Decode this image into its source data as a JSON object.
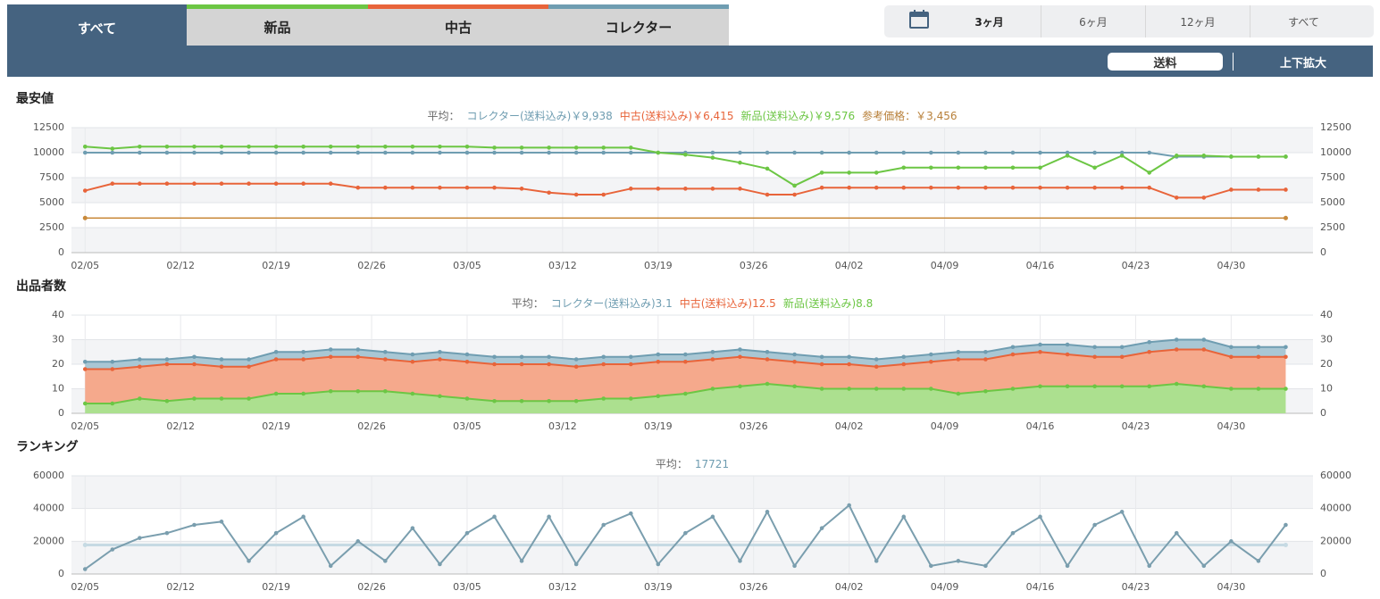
{
  "tabs": [
    "すべて",
    "新品",
    "中古",
    "コレクター"
  ],
  "range_options": [
    "3ヶ月",
    "6ヶ月",
    "12ヶ月",
    "すべて"
  ],
  "toolbar": [
    "送料",
    "上下拡大"
  ],
  "chart_data": [
    {
      "type": "line",
      "title": "最安値",
      "summary": [
        {
          "text": "平均：",
          "color": "#666666"
        },
        {
          "text": "コレクター(送料込み)￥9,938",
          "color": "#6f9db1"
        },
        {
          "text": "中古(送料込み)￥6,415",
          "color": "#e8643a"
        },
        {
          "text": "新品(送料込み)￥9,576",
          "color": "#6cc644"
        },
        {
          "text": "参考価格：￥3,456",
          "color": "#b8803a"
        }
      ],
      "x": [
        0,
        2,
        4,
        6,
        8,
        10,
        12,
        14,
        16,
        18,
        20,
        22,
        24,
        26,
        28,
        30,
        32,
        34,
        36,
        38,
        40,
        42,
        44,
        46,
        48,
        50,
        52,
        54,
        56,
        58,
        60,
        62,
        64,
        66,
        68,
        70,
        72,
        74,
        76,
        78,
        80,
        82,
        84,
        86,
        88
      ],
      "xlim": [
        -1,
        90
      ],
      "xticks": [
        {
          "value": 0,
          "label": "02/05"
        },
        {
          "value": 7,
          "label": "02/12"
        },
        {
          "value": 14,
          "label": "02/19"
        },
        {
          "value": 21,
          "label": "02/26"
        },
        {
          "value": 28,
          "label": "03/05"
        },
        {
          "value": 35,
          "label": "03/12"
        },
        {
          "value": 42,
          "label": "03/19"
        },
        {
          "value": 49,
          "label": "03/26"
        },
        {
          "value": 56,
          "label": "04/02"
        },
        {
          "value": 63,
          "label": "04/09"
        },
        {
          "value": 70,
          "label": "04/16"
        },
        {
          "value": 77,
          "label": "04/23"
        },
        {
          "value": 84,
          "label": "04/30"
        }
      ],
      "ylim": [
        0,
        12500
      ],
      "yticks": [
        0,
        2500,
        5000,
        7500,
        10000,
        12500
      ],
      "series": [
        {
          "name": "コレクター",
          "color": "#6f9db1",
          "values": [
            10000,
            10000,
            10000,
            10000,
            10000,
            10000,
            10000,
            10000,
            10000,
            10000,
            10000,
            10000,
            10000,
            10000,
            10000,
            10000,
            10000,
            10000,
            10000,
            10000,
            10000,
            10000,
            10000,
            10000,
            10000,
            10000,
            10000,
            10000,
            10000,
            10000,
            10000,
            10000,
            10000,
            10000,
            10000,
            10000,
            10000,
            10000,
            10000,
            10000,
            9600,
            9600,
            9600,
            9600,
            9600
          ]
        },
        {
          "name": "中古",
          "color": "#e8643a",
          "values": [
            6200,
            6900,
            6900,
            6900,
            6900,
            6900,
            6900,
            6900,
            6900,
            6900,
            6500,
            6500,
            6500,
            6500,
            6500,
            6500,
            6400,
            6000,
            5800,
            5800,
            6400,
            6400,
            6400,
            6400,
            6400,
            5800,
            5800,
            6500,
            6500,
            6500,
            6500,
            6500,
            6500,
            6500,
            6500,
            6500,
            6500,
            6500,
            6500,
            6500,
            5500,
            5500,
            6300,
            6300,
            6300
          ]
        },
        {
          "name": "新品",
          "color": "#6cc644",
          "values": [
            10600,
            10400,
            10600,
            10600,
            10600,
            10600,
            10600,
            10600,
            10600,
            10600,
            10600,
            10600,
            10600,
            10600,
            10600,
            10500,
            10500,
            10500,
            10500,
            10500,
            10500,
            10000,
            9800,
            9500,
            9000,
            8400,
            6700,
            8000,
            8000,
            8000,
            8500,
            8500,
            8500,
            8500,
            8500,
            8500,
            9700,
            8500,
            9700,
            8000,
            9700,
            9700,
            9600,
            9600,
            9600
          ]
        }
      ],
      "reference_line": {
        "value": 3456,
        "color": "#c8893a"
      }
    },
    {
      "type": "area",
      "title": "出品者数",
      "stacked": true,
      "summary": [
        {
          "text": "平均：",
          "color": "#666666"
        },
        {
          "text": "コレクター(送料込み)3.1",
          "color": "#6f9db1"
        },
        {
          "text": "中古(送料込み)12.5",
          "color": "#e8643a"
        },
        {
          "text": "新品(送料込み)8.8",
          "color": "#6cc644"
        }
      ],
      "x": [
        0,
        2,
        4,
        6,
        8,
        10,
        12,
        14,
        16,
        18,
        20,
        22,
        24,
        26,
        28,
        30,
        32,
        34,
        36,
        38,
        40,
        42,
        44,
        46,
        48,
        50,
        52,
        54,
        56,
        58,
        60,
        62,
        64,
        66,
        68,
        70,
        72,
        74,
        76,
        78,
        80,
        82,
        84,
        86,
        88
      ],
      "xlim": [
        -1,
        90
      ],
      "xticks": [
        {
          "value": 0,
          "label": "02/05"
        },
        {
          "value": 7,
          "label": "02/12"
        },
        {
          "value": 14,
          "label": "02/19"
        },
        {
          "value": 21,
          "label": "02/26"
        },
        {
          "value": 28,
          "label": "03/05"
        },
        {
          "value": 35,
          "label": "03/12"
        },
        {
          "value": 42,
          "label": "03/19"
        },
        {
          "value": 49,
          "label": "03/26"
        },
        {
          "value": 56,
          "label": "04/02"
        },
        {
          "value": 63,
          "label": "04/09"
        },
        {
          "value": 70,
          "label": "04/16"
        },
        {
          "value": 77,
          "label": "04/23"
        },
        {
          "value": 84,
          "label": "04/30"
        }
      ],
      "ylim": [
        0,
        40
      ],
      "yticks": [
        0,
        10,
        20,
        30,
        40
      ],
      "series": [
        {
          "name": "新品",
          "color": "#6cc644",
          "fill": "#ace08f",
          "values": [
            4,
            4,
            6,
            5,
            6,
            6,
            6,
            8,
            8,
            9,
            9,
            9,
            8,
            7,
            6,
            5,
            5,
            5,
            5,
            6,
            6,
            7,
            8,
            10,
            11,
            12,
            11,
            10,
            10,
            10,
            10,
            10,
            8,
            9,
            10,
            11,
            11,
            11,
            11,
            11,
            12,
            11,
            10,
            10,
            10
          ]
        },
        {
          "name": "中古",
          "color": "#e8643a",
          "fill": "#f5a98c",
          "values": [
            14,
            14,
            13,
            15,
            14,
            13,
            13,
            14,
            14,
            14,
            14,
            13,
            13,
            15,
            15,
            15,
            15,
            15,
            14,
            14,
            14,
            14,
            13,
            12,
            12,
            10,
            10,
            10,
            10,
            9,
            10,
            11,
            14,
            13,
            14,
            14,
            13,
            12,
            12,
            14,
            14,
            15,
            13,
            13,
            13
          ]
        },
        {
          "name": "コレクター",
          "color": "#6f9db1",
          "fill": "#a9c7d4",
          "values": [
            3,
            3,
            3,
            2,
            3,
            3,
            3,
            3,
            3,
            3,
            3,
            3,
            3,
            3,
            3,
            3,
            3,
            3,
            3,
            3,
            3,
            3,
            3,
            3,
            3,
            3,
            3,
            3,
            3,
            3,
            3,
            3,
            3,
            3,
            3,
            3,
            4,
            4,
            4,
            4,
            4,
            4,
            4,
            4,
            4
          ]
        }
      ]
    },
    {
      "type": "line",
      "title": "ランキング",
      "summary": [
        {
          "text": "平均：",
          "color": "#666666"
        },
        {
          "text": "17721",
          "color": "#6f9db1"
        }
      ],
      "x": [
        0,
        2,
        4,
        6,
        8,
        10,
        12,
        14,
        16,
        18,
        20,
        22,
        24,
        26,
        28,
        30,
        32,
        34,
        36,
        38,
        40,
        42,
        44,
        46,
        48,
        50,
        52,
        54,
        56,
        58,
        60,
        62,
        64,
        66,
        68,
        70,
        72,
        74,
        76,
        78,
        80,
        82,
        84,
        86,
        88
      ],
      "xlim": [
        -1,
        90
      ],
      "xticks": [
        {
          "value": 0,
          "label": "02/05"
        },
        {
          "value": 7,
          "label": "02/12"
        },
        {
          "value": 14,
          "label": "02/19"
        },
        {
          "value": 21,
          "label": "02/26"
        },
        {
          "value": 28,
          "label": "03/05"
        },
        {
          "value": 35,
          "label": "03/12"
        },
        {
          "value": 42,
          "label": "03/19"
        },
        {
          "value": 49,
          "label": "03/26"
        },
        {
          "value": 56,
          "label": "04/02"
        },
        {
          "value": 63,
          "label": "04/09"
        },
        {
          "value": 70,
          "label": "04/16"
        },
        {
          "value": 77,
          "label": "04/23"
        },
        {
          "value": 84,
          "label": "04/30"
        }
      ],
      "ylim": [
        0,
        60000
      ],
      "yticks": [
        0,
        20000,
        40000,
        60000
      ],
      "series": [
        {
          "name": "ランキング",
          "color": "#7a9eae",
          "values": [
            3000,
            15000,
            22000,
            25000,
            30000,
            32000,
            8000,
            25000,
            35000,
            5000,
            20000,
            8000,
            28000,
            6000,
            25000,
            35000,
            8000,
            35000,
            6000,
            30000,
            37000,
            6000,
            25000,
            35000,
            8000,
            38000,
            5000,
            28000,
            42000,
            8000,
            35000,
            5000,
            8000,
            5000,
            25000,
            35000,
            5000,
            30000,
            38000,
            5000,
            25000,
            5000,
            20000,
            8000,
            30000
          ]
        }
      ],
      "average_line": {
        "value": 17721,
        "color": "#c6dae3"
      }
    }
  ]
}
